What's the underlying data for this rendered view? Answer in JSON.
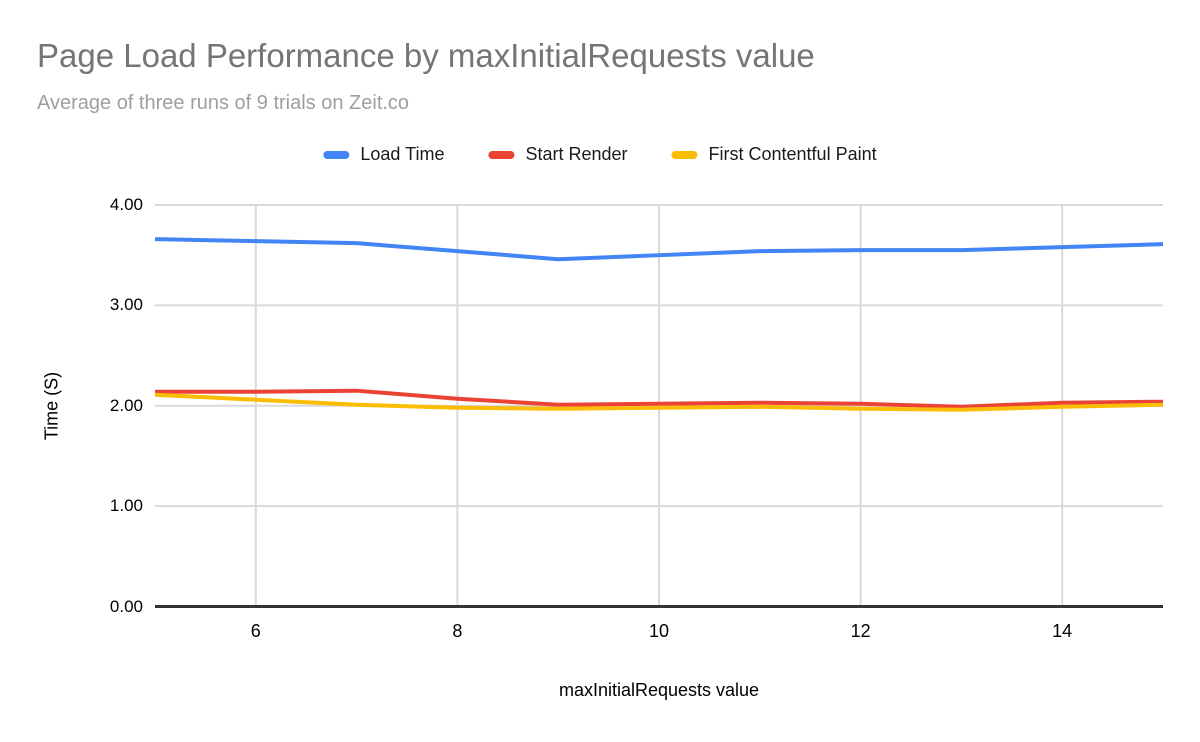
{
  "chart_data": {
    "type": "line",
    "title": "Page Load Performance by maxInitialRequests value",
    "subtitle": "Average of three runs of 9 trials on Zeit.co",
    "xlabel": "maxInitialRequests value",
    "ylabel": "Time (S)",
    "x": [
      5,
      6,
      7,
      8,
      9,
      10,
      11,
      12,
      13,
      14,
      15
    ],
    "xlim": [
      5,
      15
    ],
    "ylim": [
      0,
      4
    ],
    "x_tick_values": [
      6,
      8,
      10,
      12,
      14
    ],
    "x_tick_labels": [
      "6",
      "8",
      "10",
      "12",
      "14"
    ],
    "y_tick_values": [
      0,
      1,
      2,
      3,
      4
    ],
    "y_tick_labels": [
      "0.00",
      "1.00",
      "2.00",
      "3.00",
      "4.00"
    ],
    "grid": true,
    "legend_position": "top",
    "series": [
      {
        "name": "Load Time",
        "color": "#4285F4",
        "values": [
          3.66,
          3.64,
          3.62,
          3.54,
          3.46,
          3.5,
          3.54,
          3.55,
          3.55,
          3.58,
          3.61
        ]
      },
      {
        "name": "Start Render",
        "color": "#EA4335",
        "values": [
          2.14,
          2.14,
          2.15,
          2.07,
          2.01,
          2.02,
          2.03,
          2.02,
          1.99,
          2.03,
          2.04
        ]
      },
      {
        "name": "First Contentful Paint",
        "color": "#FBBC04",
        "values": [
          2.11,
          2.06,
          2.01,
          1.98,
          1.97,
          1.98,
          1.99,
          1.97,
          1.96,
          1.99,
          2.01
        ]
      }
    ],
    "style": {
      "gridline_color": "#d9d9d9",
      "axis_line_color": "#333333",
      "title_color": "#757575",
      "subtitle_color": "#9e9e9e"
    }
  }
}
